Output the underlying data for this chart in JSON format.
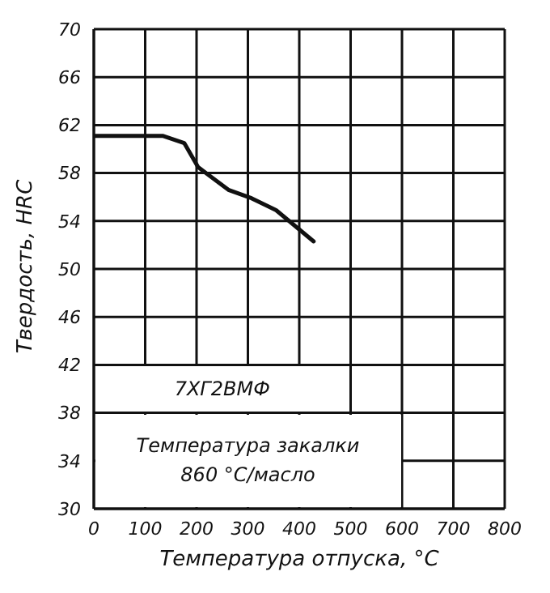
{
  "chart_data": {
    "type": "line",
    "xlabel": "Температура отпуска, °С",
    "ylabel": "Твердость, HRC",
    "x": [
      0,
      134,
      176,
      203,
      262,
      307,
      355,
      428
    ],
    "series": [
      {
        "color": "#111111",
        "values": [
          61.1,
          61.1,
          60.5,
          58.5,
          56.6,
          55.9,
          54.9,
          52.3
        ]
      }
    ],
    "xlim": [
      0,
      800
    ],
    "xticks": [
      0,
      100,
      200,
      300,
      400,
      500,
      600,
      700,
      800
    ],
    "ylim": [
      30,
      70
    ],
    "yticks": [
      30,
      34,
      38,
      42,
      46,
      50,
      54,
      58,
      62,
      66,
      70
    ],
    "grid": true,
    "marker": "none",
    "line_style": "solid",
    "annotations": [
      "7ХГ2ВМФ",
      "Температура закалки 860 °С/масло"
    ]
  }
}
